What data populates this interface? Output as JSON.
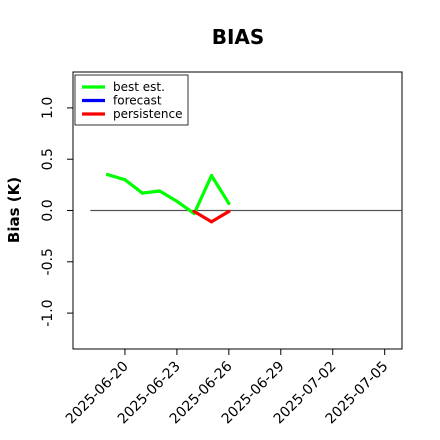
{
  "chart_data": {
    "type": "line",
    "title": "BIAS",
    "xlabel": "",
    "ylabel": "Bias (K)",
    "xlim": [
      "2025-06-17",
      "2025-07-06"
    ],
    "ylim": [
      -1.35,
      1.35
    ],
    "yticks": [
      -1.0,
      -0.5,
      0.0,
      0.5,
      1.0
    ],
    "ytick_labels": [
      "-1.0",
      "-0.5",
      "0.0",
      "0.5",
      "1.0"
    ],
    "xticks": [
      "2025-06-20",
      "2025-06-23",
      "2025-06-26",
      "2025-06-29",
      "2025-07-02",
      "2025-07-05"
    ],
    "xtick_labels": [
      "2025-06-20",
      "2025-06-23",
      "2025-06-26",
      "2025-06-29",
      "2025-07-02",
      "2025-07-05"
    ],
    "highlighted_xtick": "2025-06-26",
    "highlight_color": "#228b22",
    "reference_line": {
      "y": 0,
      "from": "2025-06-18",
      "to": "2025-07-06",
      "color": "#555555"
    },
    "legend": {
      "position": "top-left",
      "entries": [
        "best est.",
        "forecast",
        "persistence"
      ]
    },
    "series": [
      {
        "name": "best est.",
        "color": "#00ff00",
        "x": [
          "2025-06-19",
          "2025-06-20",
          "2025-06-21",
          "2025-06-22",
          "2025-06-23",
          "2025-06-24",
          "2025-06-25",
          "2025-06-26"
        ],
        "values": [
          0.35,
          0.3,
          0.17,
          0.19,
          0.09,
          -0.03,
          0.34,
          0.07
        ]
      },
      {
        "name": "forecast",
        "color": "#0000ff",
        "x": [],
        "values": []
      },
      {
        "name": "persistence",
        "color": "#ff0000",
        "x": [
          "2025-06-24",
          "2025-06-25",
          "2025-06-26"
        ],
        "values": [
          -0.01,
          -0.11,
          -0.01
        ]
      }
    ]
  }
}
